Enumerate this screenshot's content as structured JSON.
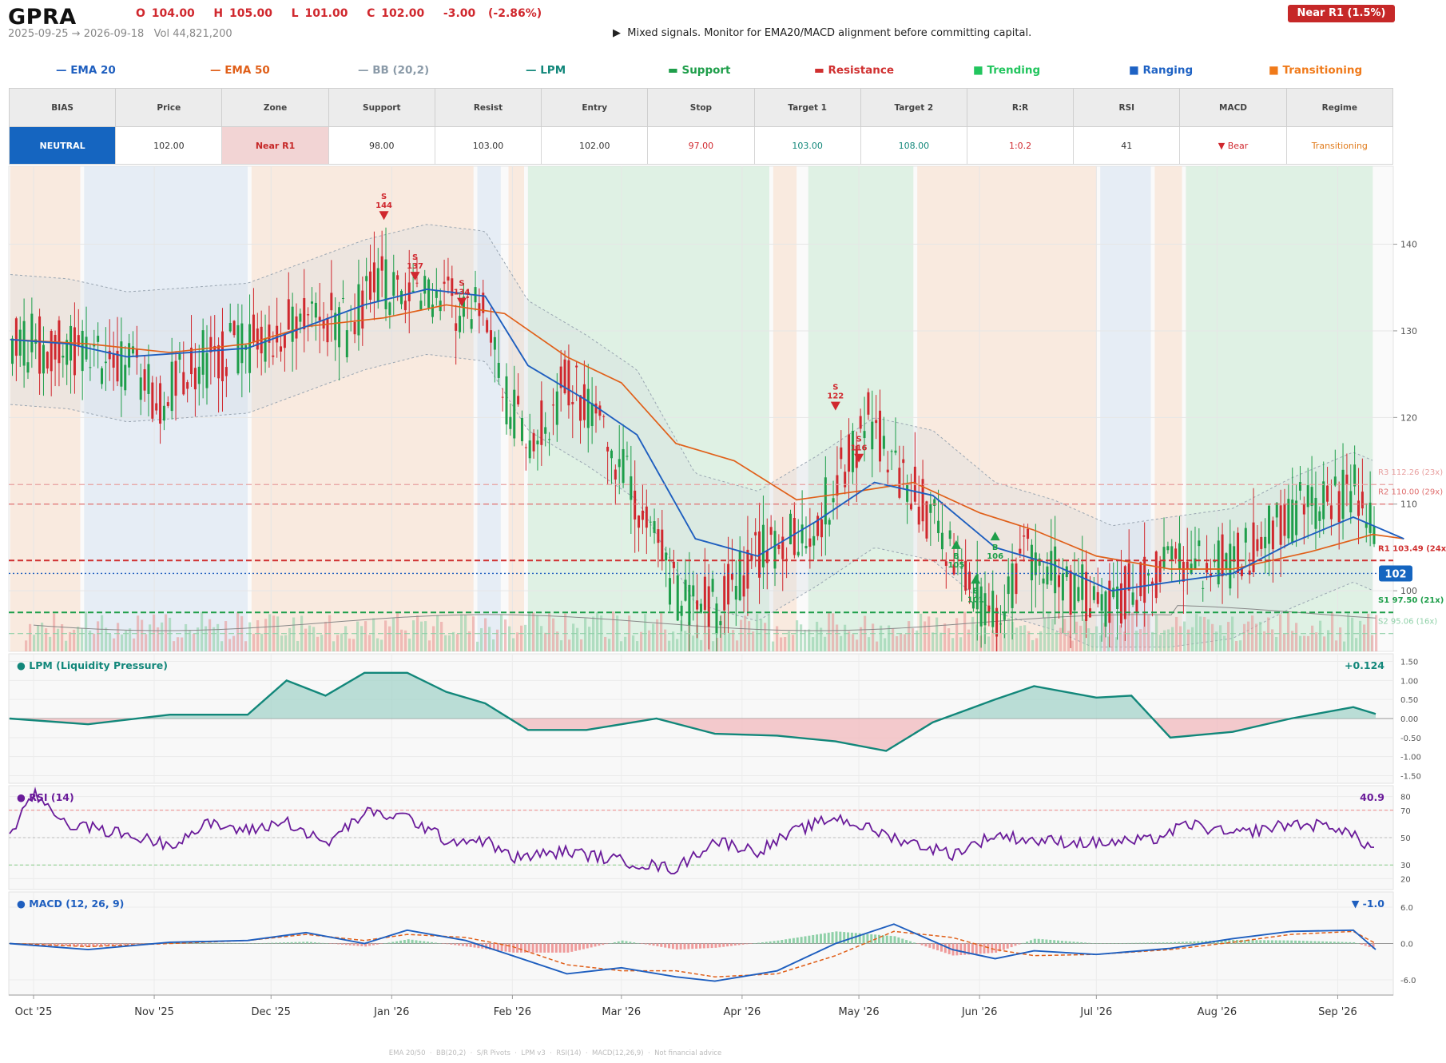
{
  "header": {
    "ticker": "GPRA",
    "ohlc": "O 104.00   H 105.00   L 101.00   C 102.00   -3.00  (-2.86%)",
    "subline": "2025-09-25 → 2026-09-18   Vol 44,821,200",
    "signal": "▶  Mixed signals. Monitor for EMA20/MACD alignment before committing capital.",
    "badge": "Near R1  (1.5%)"
  },
  "legend": [
    {
      "glyph": "—",
      "label": "EMA 20",
      "color": "#1f5fbf"
    },
    {
      "glyph": "—",
      "label": "EMA 50",
      "color": "#e0601a"
    },
    {
      "glyph": "—",
      "label": "BB (20,2)",
      "color": "#8a9aa8"
    },
    {
      "glyph": "—",
      "label": "LPM",
      "color": "#12877a"
    },
    {
      "glyph": "▬",
      "label": "Support",
      "color": "#1e9e4a"
    },
    {
      "glyph": "▬",
      "label": "Resistance",
      "color": "#d03030"
    },
    {
      "glyph": "■",
      "label": "Trending",
      "color": "#22c55e"
    },
    {
      "glyph": "■",
      "label": "Ranging",
      "color": "#1e62c4"
    },
    {
      "glyph": "■",
      "label": "Transitioning",
      "color": "#f07a1a"
    }
  ],
  "stats": {
    "headers": [
      "BIAS",
      "Price",
      "Zone",
      "Support",
      "Resist",
      "Entry",
      "Stop",
      "Target 1",
      "Target 2",
      "R:R",
      "RSI",
      "MACD",
      "Regime"
    ],
    "values": [
      "NEUTRAL",
      "102.00",
      "Near R1",
      "98.00",
      "103.00",
      "102.00",
      "97.00",
      "103.00",
      "108.00",
      "1:0.2",
      "41",
      "▼ Bear",
      "Transitioning"
    ],
    "colors": [
      "#ffffff",
      "#333333",
      "#c62828",
      "#333333",
      "#333333",
      "#333333",
      "#d0282e",
      "#12877a",
      "#12877a",
      "#d0282e",
      "#333333",
      "#d0282e",
      "#e07a1a"
    ],
    "bgs": [
      "#1565c0",
      "#ffffff",
      "#f2d4d4",
      "#ffffff",
      "#ffffff",
      "#ffffff",
      "#ffffff",
      "#ffffff",
      "#ffffff",
      "#ffffff",
      "#ffffff",
      "#ffffff",
      "#ffffff"
    ]
  },
  "footer": "EMA 20/50  ·  BB(20,2)  ·  S/R Pivots  ·  LPM v3  ·  RSI(14)  ·  MACD(12,26,9)  ·  Not financial advice",
  "chart_data": [
    {
      "type": "candlestick",
      "x_ticks": [
        "Oct '25",
        "Nov '25",
        "Dec '25",
        "Jan '26",
        "Feb '26",
        "Mar '26",
        "Apr '26",
        "May '26",
        "Jun '26",
        "Jul '26",
        "Aug '26",
        "Sep '26"
      ],
      "y_ticks": [
        100,
        110,
        120,
        130,
        140
      ],
      "ylim": [
        93,
        149
      ],
      "last_price": "102",
      "close_path": [
        [
          "2025-09-25",
          129
        ],
        [
          "2025-10-05",
          128
        ],
        [
          "2025-10-15",
          127
        ],
        [
          "2025-10-25",
          126
        ],
        [
          "2025-11-02",
          121
        ],
        [
          "2025-11-10",
          126
        ],
        [
          "2025-11-20",
          128
        ],
        [
          "2025-11-30",
          129
        ],
        [
          "2025-12-10",
          134
        ],
        [
          "2025-12-20",
          130
        ],
        [
          "2025-12-28",
          136
        ],
        [
          "2026-01-05",
          134
        ],
        [
          "2026-01-15",
          133
        ],
        [
          "2026-01-25",
          131
        ],
        [
          "2026-01-30",
          122
        ],
        [
          "2026-02-05",
          117
        ],
        [
          "2026-02-15",
          124
        ],
        [
          "2026-02-25",
          117
        ],
        [
          "2026-03-05",
          110
        ],
        [
          "2026-03-15",
          100
        ],
        [
          "2026-03-25",
          98
        ],
        [
          "2026-04-05",
          104
        ],
        [
          "2026-04-15",
          106
        ],
        [
          "2026-04-25",
          112
        ],
        [
          "2026-05-03",
          120
        ],
        [
          "2026-05-10",
          114
        ],
        [
          "2026-05-20",
          108
        ],
        [
          "2026-05-30",
          100
        ],
        [
          "2026-06-05",
          98
        ],
        [
          "2026-06-15",
          105
        ],
        [
          "2026-06-25",
          100
        ],
        [
          "2026-07-05",
          99
        ],
        [
          "2026-07-15",
          101
        ],
        [
          "2026-07-25",
          104
        ],
        [
          "2026-08-05",
          103
        ],
        [
          "2026-08-15",
          107
        ],
        [
          "2026-08-25",
          110
        ],
        [
          "2026-09-05",
          112
        ],
        [
          "2026-09-12",
          106
        ],
        [
          "2026-09-18",
          102
        ]
      ],
      "ema20": [
        [
          "2025-09-25",
          129
        ],
        [
          "2025-10-10",
          128.5
        ],
        [
          "2025-10-25",
          127
        ],
        [
          "2025-11-10",
          127.5
        ],
        [
          "2025-11-25",
          128
        ],
        [
          "2025-12-10",
          130.5
        ],
        [
          "2025-12-25",
          133
        ],
        [
          "2026-01-10",
          134.8
        ],
        [
          "2026-01-25",
          134
        ],
        [
          "2026-02-05",
          126
        ],
        [
          "2026-02-20",
          122
        ],
        [
          "2026-03-05",
          118
        ],
        [
          "2026-03-20",
          106
        ],
        [
          "2026-04-05",
          104
        ],
        [
          "2026-04-20",
          108
        ],
        [
          "2026-05-05",
          112.5
        ],
        [
          "2026-05-20",
          111
        ],
        [
          "2026-06-05",
          105
        ],
        [
          "2026-06-20",
          103
        ],
        [
          "2026-07-05",
          100
        ],
        [
          "2026-07-20",
          101
        ],
        [
          "2026-08-05",
          102
        ],
        [
          "2026-08-20",
          105.5
        ],
        [
          "2026-09-05",
          108.5
        ],
        [
          "2026-09-18",
          106
        ]
      ],
      "ema50": [
        [
          "2025-09-25",
          129
        ],
        [
          "2025-10-15",
          128.5
        ],
        [
          "2025-11-05",
          127.5
        ],
        [
          "2025-11-25",
          128.5
        ],
        [
          "2025-12-10",
          130.5
        ],
        [
          "2025-12-30",
          131.5
        ],
        [
          "2026-01-15",
          133
        ],
        [
          "2026-01-30",
          132
        ],
        [
          "2026-02-15",
          127
        ],
        [
          "2026-03-01",
          124
        ],
        [
          "2026-03-15",
          117
        ],
        [
          "2026-03-30",
          115
        ],
        [
          "2026-04-15",
          110.5
        ],
        [
          "2026-05-01",
          111.5
        ],
        [
          "2026-05-15",
          112.5
        ],
        [
          "2026-06-01",
          109
        ],
        [
          "2026-06-15",
          107
        ],
        [
          "2026-07-01",
          104
        ],
        [
          "2026-07-20",
          102.5
        ],
        [
          "2026-08-05",
          102.5
        ],
        [
          "2026-08-25",
          104.5
        ],
        [
          "2026-09-10",
          106.5
        ],
        [
          "2026-09-18",
          106
        ]
      ],
      "levels": [
        {
          "label": "R3 112.26 (23x)",
          "value": 112.26,
          "color": "#e8a0a0"
        },
        {
          "label": "R2 110.00 (29x)",
          "value": 110.0,
          "color": "#e07070"
        },
        {
          "label": "R1 103.49 (24x)",
          "value": 103.49,
          "color": "#d03030"
        },
        {
          "label": "S1 97.50 (21x)",
          "value": 97.5,
          "color": "#1e9e4a"
        },
        {
          "label": "S2 95.06 (16x)",
          "value": 95.06,
          "color": "#8fd0a8"
        }
      ],
      "signals": [
        {
          "type": "S",
          "label": "144",
          "date": "2025-12-30",
          "price": 144
        },
        {
          "type": "S",
          "label": "137",
          "date": "2026-01-07",
          "price": 137
        },
        {
          "type": "S",
          "label": "134",
          "date": "2026-01-19",
          "price": 134
        },
        {
          "type": "S",
          "label": "122",
          "date": "2026-04-25",
          "price": 122
        },
        {
          "type": "S",
          "label": "116",
          "date": "2026-05-01",
          "price": 116
        },
        {
          "type": "B",
          "label": "105",
          "date": "2026-05-26",
          "price": 105
        },
        {
          "type": "B",
          "label": "101",
          "date": "2026-05-31",
          "price": 101
        },
        {
          "type": "B",
          "label": "106",
          "date": "2026-06-05",
          "price": 106
        }
      ],
      "regimes": [
        {
          "from": "2025-09-25",
          "to": "2025-10-13",
          "regime": "Transitioning"
        },
        {
          "from": "2025-10-14",
          "to": "2025-11-25",
          "regime": "Ranging"
        },
        {
          "from": "2025-11-26",
          "to": "2026-01-22",
          "regime": "Transitioning"
        },
        {
          "from": "2026-01-23",
          "to": "2026-01-29",
          "regime": "Ranging"
        },
        {
          "from": "2026-01-31",
          "to": "2026-02-04",
          "regime": "Transitioning"
        },
        {
          "from": "2026-02-05",
          "to": "2026-04-08",
          "regime": "Trending"
        },
        {
          "from": "2026-04-09",
          "to": "2026-04-15",
          "regime": "Transitioning"
        },
        {
          "from": "2026-04-18",
          "to": "2026-05-15",
          "regime": "Trending"
        },
        {
          "from": "2026-05-16",
          "to": "2026-07-01",
          "regime": "Transitioning"
        },
        {
          "from": "2026-07-02",
          "to": "2026-07-15",
          "regime": "Ranging"
        },
        {
          "from": "2026-07-16",
          "to": "2026-07-23",
          "regime": "Transitioning"
        },
        {
          "from": "2026-07-24",
          "to": "2026-09-10",
          "regime": "Trending"
        }
      ]
    },
    {
      "type": "area",
      "title": "● LPM (Liquidity Pressure)",
      "last_value": "+0.124",
      "y_ticks": [
        "1.50",
        "1.00",
        "0.50",
        "0.00",
        "-0.50",
        "-1.00",
        "-1.50"
      ],
      "ylim": [
        -1.7,
        1.7
      ],
      "x": [
        "2025-09-25",
        "2025-10-15",
        "2025-11-05",
        "2025-11-25",
        "2025-12-05",
        "2025-12-15",
        "2025-12-25",
        "2026-01-05",
        "2026-01-15",
        "2026-01-25",
        "2026-02-05",
        "2026-02-20",
        "2026-03-10",
        "2026-03-25",
        "2026-04-10",
        "2026-04-25",
        "2026-05-08",
        "2026-05-20",
        "2026-06-05",
        "2026-06-15",
        "2026-07-01",
        "2026-07-10",
        "2026-07-20",
        "2026-08-05",
        "2026-08-20",
        "2026-09-05",
        "2026-09-18"
      ],
      "values": [
        0.0,
        -0.15,
        0.1,
        0.1,
        1.0,
        0.6,
        1.2,
        1.2,
        0.7,
        0.4,
        -0.3,
        -0.3,
        0.0,
        -0.4,
        -0.45,
        -0.6,
        -0.85,
        -0.1,
        0.5,
        0.85,
        0.55,
        0.6,
        -0.5,
        -0.35,
        0.0,
        0.3,
        0.12
      ]
    },
    {
      "type": "line",
      "title": "● RSI (14)",
      "last_value": "40.9",
      "y_ticks": [
        80,
        70,
        50,
        30,
        20
      ],
      "ylim": [
        12,
        88
      ],
      "x": [
        "2025-09-25",
        "2025-10-01",
        "2025-10-10",
        "2025-10-20",
        "2025-11-05",
        "2025-11-15",
        "2025-11-25",
        "2025-12-05",
        "2025-12-15",
        "2025-12-25",
        "2026-01-05",
        "2026-01-15",
        "2026-01-25",
        "2026-02-01",
        "2026-02-15",
        "2026-03-01",
        "2026-03-15",
        "2026-03-25",
        "2026-04-05",
        "2026-04-15",
        "2026-04-25",
        "2026-05-10",
        "2026-05-25",
        "2026-06-05",
        "2026-06-15",
        "2026-07-01",
        "2026-07-15",
        "2026-07-25",
        "2026-08-05",
        "2026-08-20",
        "2026-09-01",
        "2026-09-18"
      ],
      "values": [
        50,
        82,
        60,
        55,
        45,
        60,
        55,
        62,
        45,
        68,
        65,
        48,
        48,
        35,
        40,
        33,
        27,
        48,
        40,
        55,
        65,
        50,
        38,
        52,
        48,
        46,
        48,
        60,
        52,
        60,
        58,
        41
      ]
    },
    {
      "type": "line",
      "title": "● MACD (12, 26, 9)",
      "last_value": "▼ -1.0",
      "y_ticks": [
        "6.0",
        "0.0",
        "-6.0"
      ],
      "ylim": [
        -8.5,
        8.5
      ],
      "x": [
        "2025-09-25",
        "2025-10-15",
        "2025-11-05",
        "2025-11-25",
        "2025-12-10",
        "2025-12-25",
        "2026-01-05",
        "2026-01-20",
        "2026-02-01",
        "2026-02-15",
        "2026-03-01",
        "2026-03-15",
        "2026-03-25",
        "2026-04-10",
        "2026-04-25",
        "2026-05-10",
        "2026-05-25",
        "2026-06-05",
        "2026-06-15",
        "2026-07-01",
        "2026-07-20",
        "2026-08-05",
        "2026-08-20",
        "2026-09-05",
        "2026-09-18"
      ],
      "values": [
        0.0,
        -1.0,
        0.2,
        0.5,
        1.8,
        0.0,
        2.2,
        0.5,
        -2.0,
        -5.0,
        -4.0,
        -5.5,
        -6.2,
        -4.5,
        0.0,
        3.2,
        -1.0,
        -2.5,
        -1.2,
        -1.8,
        -0.8,
        0.8,
        2.0,
        2.2,
        -1.0
      ],
      "signal": [
        0.0,
        -0.5,
        0.0,
        0.5,
        1.5,
        0.5,
        1.5,
        1.0,
        -0.5,
        -3.5,
        -4.5,
        -4.5,
        -5.5,
        -5.0,
        -2.0,
        2.0,
        1.0,
        -1.0,
        -2.0,
        -1.8,
        -1.0,
        0.2,
        1.5,
        2.0,
        0.0
      ]
    }
  ]
}
